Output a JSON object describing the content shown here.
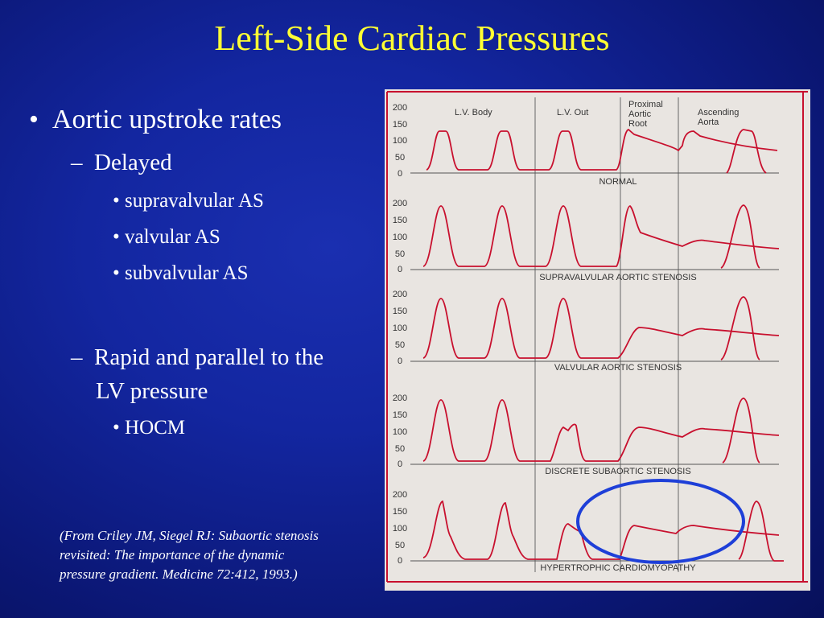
{
  "slide": {
    "title": "Left-Side Cardiac Pressures"
  },
  "bullets": {
    "l1": "Aortic upstroke rates",
    "l2a": "Delayed",
    "l3a": "supravalvular AS",
    "l3b": "valvular AS",
    "l3c": "subvalvular AS",
    "l2b_line1": "Rapid and parallel to the",
    "l2b_line2": "LV pressure",
    "l3d": "HOCM"
  },
  "citation": {
    "line1": "(From Criley JM, Siegel RJ: Subaortic stenosis",
    "line2": "revisited: The importance of the dynamic",
    "line3": "pressure gradient. Medicine 72:412, 1993.)"
  },
  "figure": {
    "column_labels": [
      "L.V. Body",
      "L.V. Out",
      "Proximal",
      "Aortic",
      "Root",
      "Ascending",
      "Aorta"
    ],
    "y_ticks": [
      "200",
      "150",
      "100",
      "50",
      "0"
    ],
    "panel_titles": [
      "NORMAL",
      "SUPRAVALVULAR AORTIC STENOSIS",
      "VALVULAR AORTIC STENOSIS",
      "DISCRETE SUBAORTIC STENOSIS",
      "HYPERTROPHIC CARDIOMYOPATHY"
    ],
    "trace_color": "#c8102e",
    "highlight_color": "#1e3fd8"
  },
  "colors": {
    "title": "#ffff33",
    "text": "#ffffff",
    "background": "#1326a0"
  }
}
